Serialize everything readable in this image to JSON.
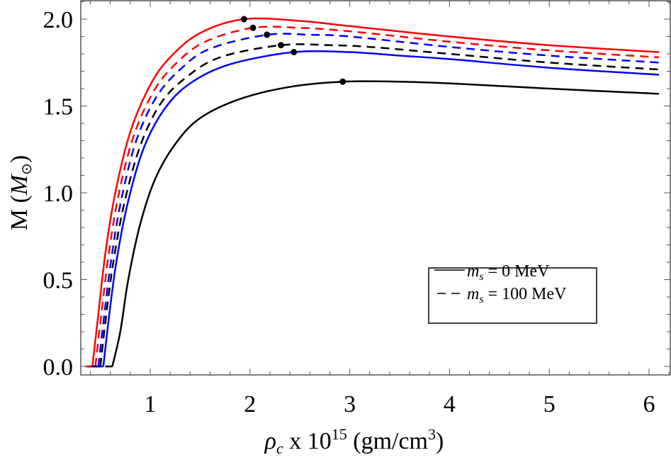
{
  "chart_data": {
    "type": "line",
    "title": "",
    "xlabel": "ρ_c x 10^15 (gm/cm^3)",
    "ylabel": "M (M_⊙)",
    "xlim": [
      0.3,
      6.3
    ],
    "ylim": [
      -0.05,
      2.1
    ],
    "xticks": [
      1,
      2,
      3,
      4,
      5,
      6
    ],
    "yticks": [
      0.0,
      0.5,
      1.0,
      1.5,
      2.0
    ],
    "ytick_labels": [
      "0.0",
      "0.5",
      "1.0",
      "1.5",
      "2.0"
    ],
    "grid": false,
    "legend_position": "center-right",
    "legend": [
      {
        "style": "solid",
        "label": "m_s = 0 MeV"
      },
      {
        "style": "dashed",
        "label": "m_s = 100 MeV"
      }
    ],
    "series": [
      {
        "name": "red solid (m_s = 0 MeV)",
        "color": "#ff0000",
        "style": "solid",
        "x": [
          0.42,
          0.48,
          0.55,
          0.65,
          0.8,
          1.0,
          1.2,
          1.5,
          1.94,
          2.5,
          3.0,
          4.0,
          5.0,
          6.1
        ],
        "y": [
          0.0,
          0.3,
          0.65,
          1.0,
          1.35,
          1.62,
          1.78,
          1.92,
          2.0,
          1.99,
          1.96,
          1.9,
          1.85,
          1.81
        ],
        "max_point": {
          "x": 1.94,
          "y": 2.0
        }
      },
      {
        "name": "red dashed (m_s = 100 MeV)",
        "color": "#ff0000",
        "style": "dashed",
        "x": [
          0.45,
          0.51,
          0.58,
          0.68,
          0.83,
          1.03,
          1.25,
          1.55,
          2.03,
          2.5,
          3.0,
          4.0,
          5.0,
          6.1
        ],
        "y": [
          0.0,
          0.3,
          0.63,
          0.98,
          1.32,
          1.58,
          1.74,
          1.87,
          1.95,
          1.95,
          1.93,
          1.87,
          1.82,
          1.78
        ],
        "max_point": {
          "x": 2.03,
          "y": 1.95
        }
      },
      {
        "name": "blue dashed (m_s = 100 MeV)",
        "color": "#0000ff",
        "style": "dashed",
        "x": [
          0.48,
          0.54,
          0.61,
          0.71,
          0.86,
          1.06,
          1.3,
          1.6,
          2.17,
          2.6,
          3.0,
          4.0,
          5.0,
          6.1
        ],
        "y": [
          0.0,
          0.3,
          0.62,
          0.96,
          1.3,
          1.55,
          1.71,
          1.83,
          1.91,
          1.91,
          1.9,
          1.84,
          1.79,
          1.75
        ],
        "max_point": {
          "x": 2.17,
          "y": 1.91
        }
      },
      {
        "name": "black dashed (m_s = 100 MeV)",
        "color": "#000000",
        "style": "dashed",
        "x": [
          0.5,
          0.56,
          0.63,
          0.74,
          0.9,
          1.1,
          1.35,
          1.7,
          2.31,
          2.8,
          3.2,
          4.0,
          5.0,
          6.1
        ],
        "y": [
          0.0,
          0.3,
          0.6,
          0.94,
          1.27,
          1.51,
          1.66,
          1.78,
          1.85,
          1.85,
          1.84,
          1.8,
          1.75,
          1.71
        ],
        "max_point": {
          "x": 2.31,
          "y": 1.85
        }
      },
      {
        "name": "blue solid (m_s = 0 MeV)",
        "color": "#0000ff",
        "style": "solid",
        "x": [
          0.53,
          0.59,
          0.66,
          0.77,
          0.93,
          1.14,
          1.4,
          1.8,
          2.44,
          3.0,
          3.5,
          4.0,
          5.0,
          6.1
        ],
        "y": [
          0.0,
          0.3,
          0.6,
          0.93,
          1.25,
          1.48,
          1.63,
          1.74,
          1.81,
          1.81,
          1.79,
          1.77,
          1.72,
          1.68
        ],
        "max_point": {
          "x": 2.44,
          "y": 1.81
        }
      },
      {
        "name": "black solid (m_s = 0 MeV)",
        "color": "#000000",
        "style": "solid",
        "x": [
          0.62,
          0.7,
          0.78,
          0.9,
          1.05,
          1.25,
          1.5,
          1.9,
          2.4,
          2.93,
          3.5,
          4.0,
          5.0,
          6.1
        ],
        "y": [
          0.0,
          0.2,
          0.5,
          0.82,
          1.08,
          1.28,
          1.43,
          1.54,
          1.61,
          1.64,
          1.64,
          1.63,
          1.6,
          1.57
        ],
        "max_point": {
          "x": 2.93,
          "y": 1.64
        }
      }
    ]
  },
  "labels": {
    "x_axis_main": "ρ",
    "x_axis_sub": "c",
    "x_axis_mid": " x 10",
    "x_axis_exp": "15",
    "x_axis_unit": " (gm/cm",
    "x_axis_unit_exp": "3",
    "x_axis_close": ")",
    "y_axis_main": "M (",
    "y_axis_sym": "M",
    "y_axis_sub": "⊙",
    "y_axis_close": ")",
    "legend_solid_m": "m",
    "legend_solid_sub": "s",
    "legend_solid_rest": " = 0 MeV",
    "legend_dashed_m": "m",
    "legend_dashed_sub": "s",
    "legend_dashed_rest": " = 100 MeV"
  }
}
